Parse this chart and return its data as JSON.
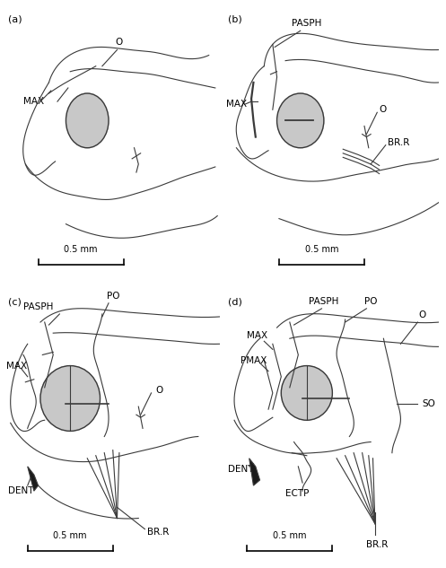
{
  "figure_size": [
    4.97,
    6.33
  ],
  "dpi": 100,
  "bg_color": "#ffffff",
  "line_color": "#3a3a3a",
  "line_width": 0.8,
  "panel_labels": [
    "(a)",
    "(b)",
    "(c)",
    "(d)"
  ],
  "scale_bar_text": "0.5 mm",
  "eye_color": "#c8c8c8"
}
